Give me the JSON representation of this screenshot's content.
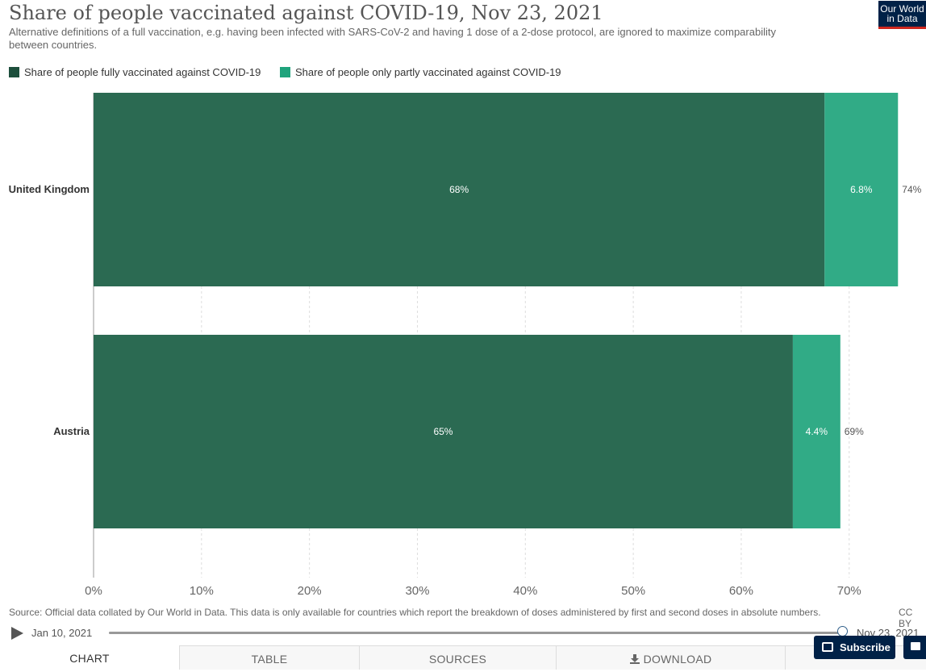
{
  "header": {
    "title": "Share of people vaccinated against COVID-19, Nov 23, 2021",
    "subtitle": "Alternative definitions of a full vaccination, e.g. having been infected with SARS-CoV-2 and having 1 dose of a 2-dose protocol, are ignored to maximize comparability between countries.",
    "logo_line1": "Our World",
    "logo_line2": "in Data"
  },
  "chart_data": {
    "type": "bar",
    "orientation": "horizontal",
    "stacked": true,
    "categories": [
      "United Kingdom",
      "Austria"
    ],
    "series": [
      {
        "name": "Share of people fully vaccinated against COVID-19",
        "values": [
          67.72,
          64.78
        ],
        "labels": [
          "68%",
          "65%"
        ],
        "color": "#2b6a52"
      },
      {
        "name": "Share of people only partly vaccinated against COVID-19",
        "values": [
          6.8,
          4.4
        ],
        "labels": [
          "6.8%",
          "4.4%"
        ],
        "color": "#31ab86"
      }
    ],
    "totals": [
      "74%",
      "69%"
    ],
    "xlim": [
      0,
      74.5
    ],
    "xticks": [
      0,
      10,
      20,
      30,
      40,
      50,
      60,
      70
    ],
    "xtick_labels": [
      "0%",
      "10%",
      "20%",
      "30%",
      "40%",
      "50%",
      "60%",
      "70%"
    ],
    "grid": "vertical dashed",
    "legend_position": "top-left"
  },
  "footer": {
    "source": "Source: Official data collated by Our World in Data. This data is only available for countries which report the breakdown of doses administered by first and second doses in absolute numbers.",
    "license": "CC BY"
  },
  "timeline": {
    "start_label": "Jan 10, 2021",
    "end_label": "Nov 23, 2021",
    "progress": 1.0
  },
  "tabs": [
    {
      "label": "CHART",
      "active": true
    },
    {
      "label": "TABLE",
      "active": false
    },
    {
      "label": "SOURCES",
      "active": false
    },
    {
      "label": "DOWNLOAD",
      "active": false
    }
  ],
  "buttons": {
    "subscribe": "Subscribe"
  }
}
